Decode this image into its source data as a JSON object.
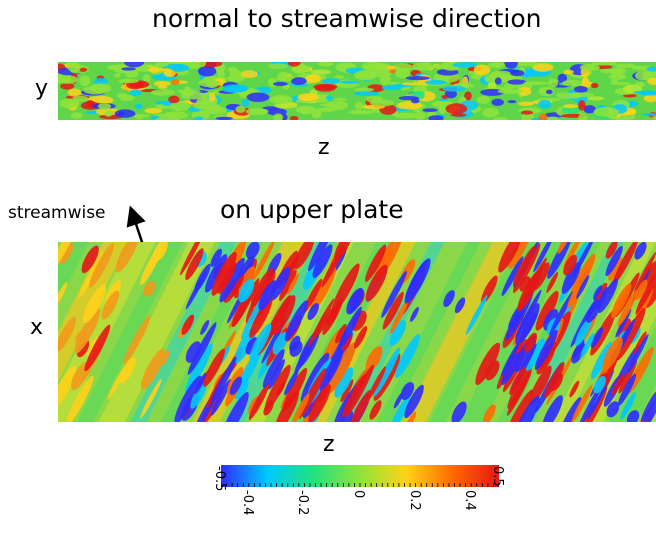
{
  "top_panel": {
    "title": "normal to streamwise direction",
    "y_label": "y",
    "z_label": "z"
  },
  "bottom_panel": {
    "title": "on upper plate",
    "x_label": "x",
    "z_label": "z",
    "direction_label": "streamwise"
  },
  "colorbar": {
    "min": -0.5,
    "max": 0.5,
    "tick_labels": [
      "-0.5",
      "-0.4",
      "-0.2",
      "0",
      "0.2",
      "0.4",
      "0.5"
    ],
    "colors": [
      "#2f2cff",
      "#00c8ff",
      "#23e27c",
      "#8fe33b",
      "#ffd21a",
      "#ff6a00",
      "#e61616"
    ]
  }
}
